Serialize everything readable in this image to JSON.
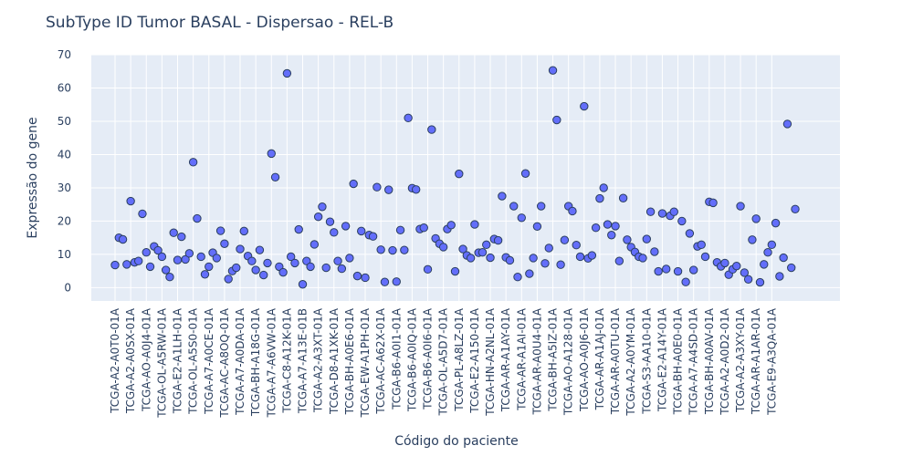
{
  "chart_data": {
    "type": "scatter",
    "title": "SubType ID Tumor BASAL - Dispersao - REL-B",
    "xlabel": "Código do paciente",
    "ylabel": "Expressão do gene",
    "ylim": [
      -4,
      70
    ],
    "y_ticks": [
      0,
      10,
      20,
      30,
      40,
      50,
      60,
      70
    ],
    "grid": true,
    "legend": "none",
    "x_tick_labels": [
      "TCGA-A2-A0T0-01A",
      "TCGA-A2-A0SX-01A",
      "TCGA-AO-A0J4-01A",
      "TCGA-OL-A5RW-01A",
      "TCGA-E2-A1LH-01A",
      "TCGA-OL-A5S0-01A",
      "TCGA-A7-A0CE-01A",
      "TCGA-AC-A8OQ-01A",
      "TCGA-A7-A0DA-01A",
      "TCGA-BH-A18G-01A",
      "TCGA-A7-A6VW-01A",
      "TCGA-C8-A12K-01A",
      "TCGA-A7-A13E-01B",
      "TCGA-A2-A3XT-01A",
      "TCGA-D8-A1XK-01A",
      "TCGA-BH-A0E6-01A",
      "TCGA-EW-A1PH-01A",
      "TCGA-AC-A62X-01A",
      "TCGA-B6-A0I1-01A",
      "TCGA-B6-A0IQ-01A",
      "TCGA-B6-A0I6-01A",
      "TCGA-OL-A5D7-01A",
      "TCGA-PL-A8LZ-01A",
      "TCGA-E2-A150-01A",
      "TCGA-HN-A2NL-01A",
      "TCGA-AR-A1AY-01A",
      "TCGA-AR-A1AI-01A",
      "TCGA-AR-A0U4-01A",
      "TCGA-BH-A5IZ-01A",
      "TCGA-AO-A128-01A",
      "TCGA-AO-A0J6-01A",
      "TCGA-AR-A1AJ-01A",
      "TCGA-AR-A0TU-01A",
      "TCGA-A2-A0YM-01A",
      "TCGA-S3-AA10-01A",
      "TCGA-E2-A14Y-01A",
      "TCGA-BH-A0E0-01A",
      "TCGA-A7-A4SD-01A",
      "TCGA-BH-A0AV-01A",
      "TCGA-A2-A0D2-01A",
      "TCGA-A2-A3XY-01A",
      "TCGA-AR-A1AR-01A",
      "TCGA-E9-A3QA-01A"
    ],
    "series": [
      {
        "color": "#636efa",
        "values": [
          6.8,
          15,
          14.5,
          7,
          26,
          7.6,
          8,
          22.2,
          10.6,
          6.3,
          12.4,
          11.2,
          9.3,
          5.3,
          3.2,
          16.5,
          8.3,
          15.3,
          8.5,
          10.3,
          37.7,
          20.8,
          9.3,
          4,
          6.3,
          10.5,
          8.9,
          17.1,
          13.2,
          2.6,
          5,
          6,
          11.6,
          17,
          9.5,
          8,
          5.3,
          11.3,
          3.8,
          7.4,
          40.3,
          33.2,
          6.3,
          4.6,
          64.4,
          9.3,
          7.4,
          17.5,
          1,
          8,
          6.3,
          13,
          21.3,
          24.3,
          6,
          19.8,
          16.6,
          8,
          5.7,
          18.5,
          8.9,
          31.2,
          3.5,
          17,
          3,
          15.8,
          15.4,
          30.2,
          11.4,
          1.7,
          29.4,
          11.2,
          1.8,
          17.3,
          11.3,
          51,
          29.9,
          29.5,
          17.6,
          18,
          5.5,
          47.5,
          14.8,
          13.2,
          12.2,
          17.6,
          18.8,
          4.9,
          34.2,
          11.6,
          9.7,
          8.9,
          19,
          10.5,
          10.6,
          12.9,
          9,
          14.6,
          14.2,
          27.5,
          9.1,
          8.2,
          24.5,
          3.2,
          21,
          34.3,
          4.2,
          8.9,
          18.4,
          24.5,
          7.3,
          11.9,
          65.3,
          50.4,
          6.9,
          14.3,
          24.5,
          23,
          12.8,
          9.3,
          54.5,
          8.8,
          9.7,
          18,
          26.8,
          30,
          19,
          15.8,
          18.5,
          8,
          26.9,
          14.4,
          12.2,
          10.7,
          9.3,
          8.9,
          14.6,
          22.8,
          10.8,
          4.9,
          22.3,
          5.6,
          21.6,
          22.8,
          4.9,
          20,
          1.7,
          16.3,
          5.3,
          12.4,
          12.9,
          9.3,
          25.8,
          25.5,
          7.6,
          6.4,
          7.4,
          3.9,
          5.5,
          6.5,
          24.5,
          4.5,
          2.5,
          14.4,
          20.7,
          1.6,
          7,
          10.6,
          12.9,
          19.4,
          3.4,
          9,
          49.2,
          6,
          23.6
        ]
      }
    ]
  }
}
